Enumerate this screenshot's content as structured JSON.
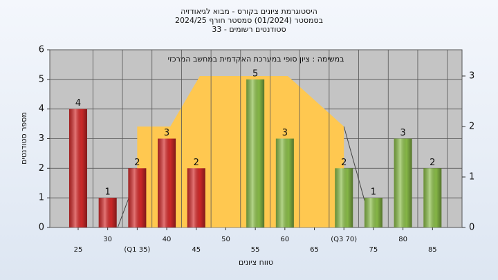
{
  "chart_data": {
    "type": "bar",
    "title_lines": [
      "היסטוגרמת ציונים בקורס - מבוא לגיאודזיה",
      "בסמסטר  (01/2024)  סמסטר חורף 2024/25",
      "סטודנטים רשומים - 33"
    ],
    "annotation": "במשימה : ציון סופי במערכת האקדמית במחשב המרכזי",
    "x_label": "טווח ציונים",
    "y_label": "מספר סטודנטים",
    "categories": [
      "25",
      "30",
      "(Q1 35)",
      "40",
      "45",
      "50",
      "55",
      "60",
      "65",
      "(Q3 70)",
      "75",
      "80",
      "85"
    ],
    "values": [
      4,
      1,
      2,
      3,
      2,
      null,
      5,
      3,
      null,
      2,
      1,
      3,
      2
    ],
    "colors": [
      "#d42a2a",
      "#d42a2a",
      "#d42a2a",
      "#d42a2a",
      "#d42a2a",
      "#d42a2a",
      "#8cbf4a",
      "#8cbf4a",
      "#8cbf4a",
      "#8cbf4a",
      "#8cbf4a",
      "#8cbf4a",
      "#8cbf4a"
    ],
    "xlim": [
      -0.96,
      13.0
    ],
    "ylim": [
      0,
      6
    ],
    "yticks": [
      0,
      1,
      2,
      3,
      4,
      5,
      6
    ],
    "y2lim": [
      0,
      3.52
    ],
    "y2ticks": [
      0,
      1,
      2,
      3
    ],
    "grid": true,
    "overlay": {
      "color": "#ffc850",
      "axis": "y2",
      "x": [
        2,
        2,
        3.12,
        4.12,
        7.1,
        9,
        9
      ],
      "values": [
        0,
        2,
        2,
        3,
        3,
        2,
        0
      ]
    },
    "whiskers": [
      {
        "color": "#444444",
        "axis": "y2",
        "x": [
          1.34,
          2
        ],
        "values": [
          0,
          1.03
        ]
      },
      {
        "color": "#444444",
        "axis": "y2",
        "x": [
          9,
          9.7
        ],
        "values": [
          2,
          0.53
        ]
      }
    ]
  }
}
